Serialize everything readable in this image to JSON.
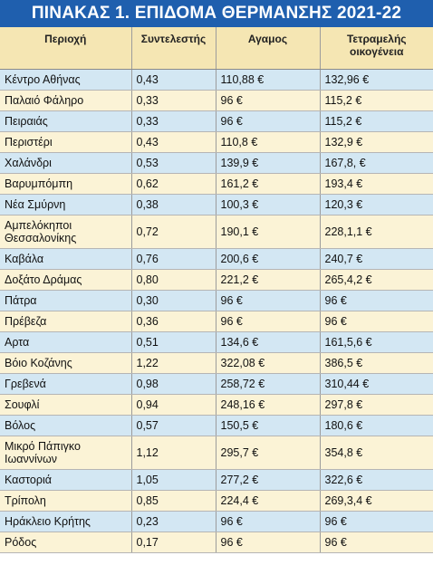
{
  "title": "ΠΙΝΑΚΑΣ 1. ΕΠΙΔΟΜΑ ΘΕΡΜΑΝΣΗΣ 2021-22",
  "headers": [
    "Περιοχή",
    "Συντελεστής",
    "Αγαμος",
    "Τετραμελής\nοικογένεια"
  ],
  "rows": [
    {
      "area": "Κέντρο Αθήνας",
      "coef": "0,43",
      "single": "110,88 €",
      "family": "132,96 €"
    },
    {
      "area": "Παλαιό Φάληρο",
      "coef": "0,33",
      "single": "96 €",
      "family": "115,2 €"
    },
    {
      "area": "Πειραιάς",
      "coef": "0,33",
      "single": "96 €",
      "family": "115,2 €"
    },
    {
      "area": "Περιστέρι",
      "coef": "0,43",
      "single": "110,8 €",
      "family": "132,9 €"
    },
    {
      "area": "Χαλάνδρι",
      "coef": "0,53",
      "single": "139,9 €",
      "family": "167,8, €"
    },
    {
      "area": "Βαρυμπόμπη",
      "coef": "0,62",
      "single": "161,2 €",
      "family": "193,4 €"
    },
    {
      "area": "Νέα Σμύρνη",
      "coef": "0,38",
      "single": "100,3 €",
      "family": "120,3 €"
    },
    {
      "area": "Αμπελόκηποι Θεσσαλονίκης",
      "coef": "0,72",
      "single": "190,1 €",
      "family": "228,1,1 €"
    },
    {
      "area": "Καβάλα",
      "coef": "0,76",
      "single": "200,6 €",
      "family": "240,7 €"
    },
    {
      "area": "Δοξάτο Δράμας",
      "coef": "0,80",
      "single": "221,2 €",
      "family": "265,4,2 €"
    },
    {
      "area": "Πάτρα",
      "coef": "0,30",
      "single": "96 €",
      "family": "96 €"
    },
    {
      "area": "Πρέβεζα",
      "coef": "0,36",
      "single": "96 €",
      "family": "96 €"
    },
    {
      "area": "Αρτα",
      "coef": "0,51",
      "single": "134,6 €",
      "family": "161,5,6 €"
    },
    {
      "area": "Βόιο Κοζάνης",
      "coef": "1,22",
      "single": "322,08 €",
      "family": "386,5 €"
    },
    {
      "area": "Γρεβενά",
      "coef": "0,98",
      "single": "258,72 €",
      "family": "310,44 €"
    },
    {
      "area": "Σουφλί",
      "coef": "0,94",
      "single": "248,16 €",
      "family": "297,8 €"
    },
    {
      "area": "Βόλος",
      "coef": "0,57",
      "single": "150,5 €",
      "family": "180,6 €"
    },
    {
      "area": "Μικρό Πάπιγκο Ιωαννίνων",
      "coef": "1,12",
      "single": "295,7 €",
      "family": "354,8 €"
    },
    {
      "area": "Καστοριά",
      "coef": "1,05",
      "single": "277,2 €",
      "family": "322,6 €"
    },
    {
      "area": "Τρίπολη",
      "coef": "0,85",
      "single": "224,4 €",
      "family": "269,3,4 €"
    },
    {
      "area": "Ηράκλειο Κρήτης",
      "coef": "0,23",
      "single": "96 €",
      "family": "96 €"
    },
    {
      "area": "Ρόδος",
      "coef": "0,17",
      "single": "96 €",
      "family": "96 €"
    }
  ],
  "colors": {
    "title_bg": "#1f5fae",
    "header_bg": "#f5e6b3",
    "row_blue": "#d3e7f3",
    "row_cream": "#fbf3d6"
  }
}
